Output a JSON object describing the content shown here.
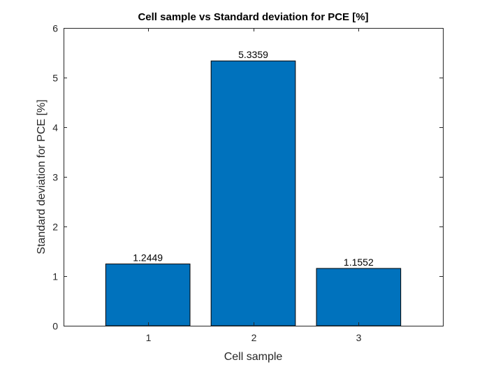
{
  "chart_data": {
    "type": "bar",
    "title": "Cell sample vs Standard deviation for PCE [%]",
    "xlabel": "Cell sample",
    "ylabel": "Standard deviation for PCE [%]",
    "categories": [
      "1",
      "2",
      "3"
    ],
    "values": [
      1.2449,
      5.3359,
      1.1552
    ],
    "data_labels": [
      "1.2449",
      "5.3359",
      "1.1552"
    ],
    "xlim": [
      0.2,
      3.8
    ],
    "ylim": [
      0,
      6
    ],
    "yticks": [
      0,
      1,
      2,
      3,
      4,
      5,
      6
    ],
    "bar_color": "#0072BD",
    "bar_edge_color": "#000000",
    "grid": false,
    "legend": "none"
  }
}
